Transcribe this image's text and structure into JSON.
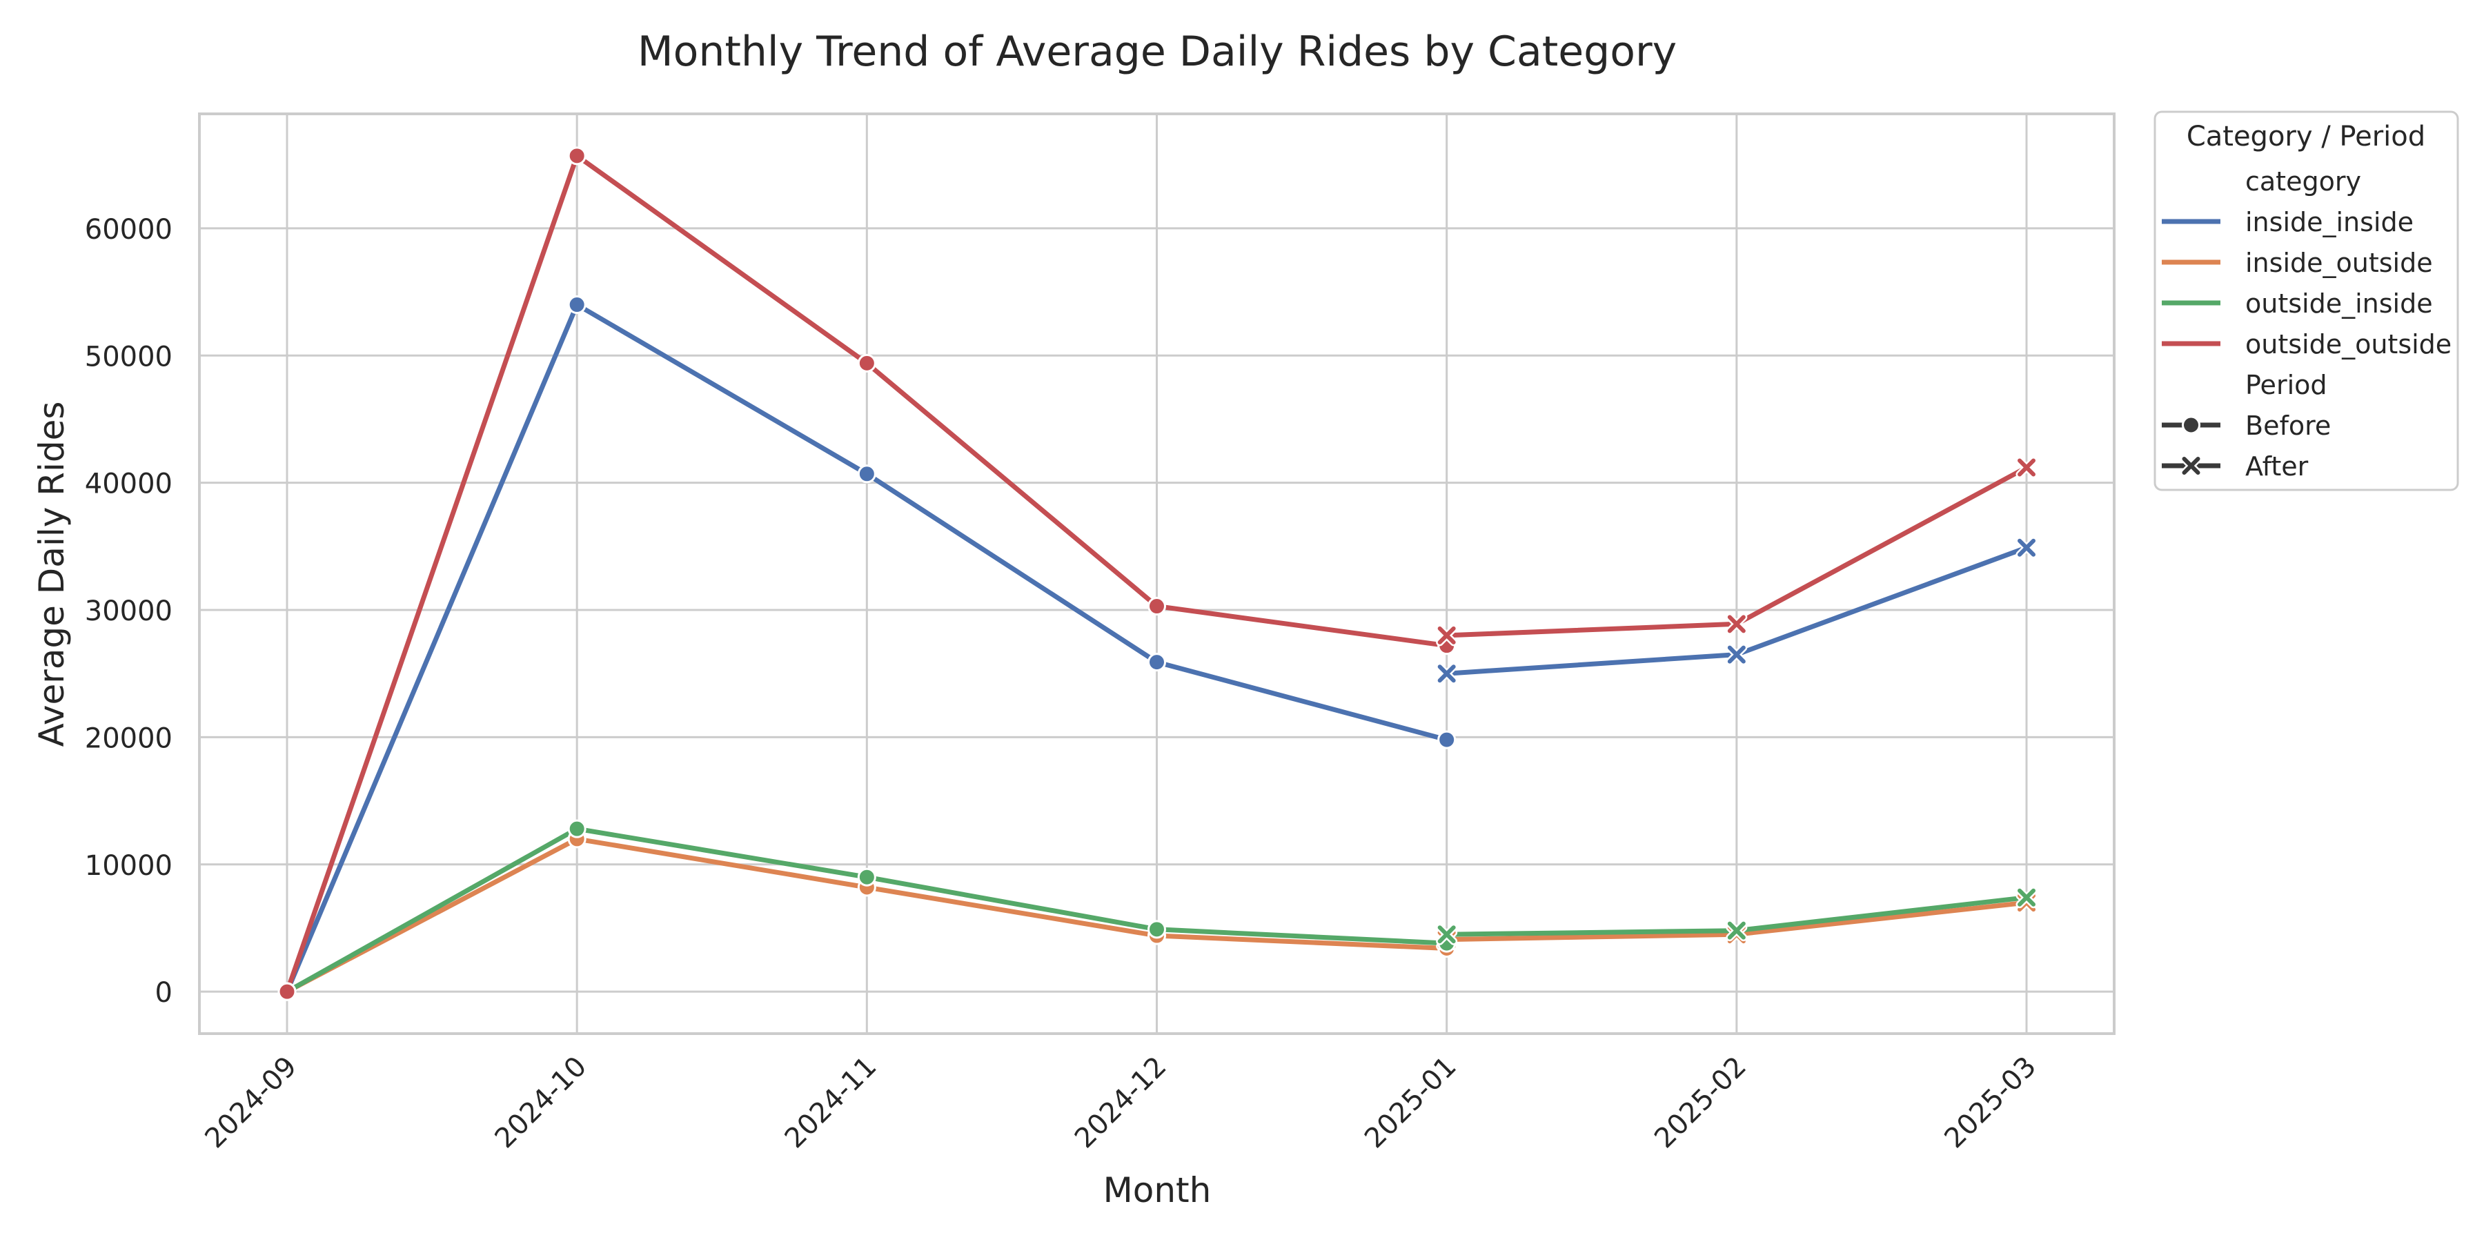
{
  "chart_data": {
    "type": "line",
    "title": "Monthly Trend of Average Daily Rides by Category",
    "xlabel": "Month",
    "ylabel": "Average Daily Rides",
    "categories": [
      "2024-09",
      "2024-10",
      "2024-11",
      "2024-12",
      "2025-01",
      "2025-02",
      "2025-03"
    ],
    "ylim": [
      -3300,
      69000
    ],
    "yticks": [
      0,
      10000,
      20000,
      30000,
      40000,
      50000,
      60000
    ],
    "ytick_labels": [
      "0",
      "10000",
      "20000",
      "30000",
      "40000",
      "50000",
      "60000"
    ],
    "grid": true,
    "legend": {
      "title": "Category / Period",
      "placement": "outside-top-right",
      "hue_header": "category",
      "style_header": "Period",
      "style_entries": [
        {
          "name": "Before",
          "marker": "circle"
        },
        {
          "name": "After",
          "marker": "x"
        }
      ]
    },
    "series": [
      {
        "name": "inside_inside",
        "color": "#4c72b0",
        "points": [
          {
            "x": "2024-09",
            "y": 0,
            "period": "Before"
          },
          {
            "x": "2024-10",
            "y": 54000,
            "period": "Before"
          },
          {
            "x": "2024-11",
            "y": 40700,
            "period": "Before"
          },
          {
            "x": "2024-12",
            "y": 25900,
            "period": "Before"
          },
          {
            "x": "2025-01",
            "y": 19800,
            "period": "Before"
          },
          {
            "x": "2025-01",
            "y": 25000,
            "period": "After"
          },
          {
            "x": "2025-02",
            "y": 26500,
            "period": "After"
          },
          {
            "x": "2025-03",
            "y": 34900,
            "period": "After"
          }
        ]
      },
      {
        "name": "inside_outside",
        "color": "#dd8452",
        "points": [
          {
            "x": "2024-09",
            "y": 0,
            "period": "Before"
          },
          {
            "x": "2024-10",
            "y": 12000,
            "period": "Before"
          },
          {
            "x": "2024-11",
            "y": 8200,
            "period": "Before"
          },
          {
            "x": "2024-12",
            "y": 4400,
            "period": "Before"
          },
          {
            "x": "2025-01",
            "y": 3400,
            "period": "Before"
          },
          {
            "x": "2025-01",
            "y": 4100,
            "period": "After"
          },
          {
            "x": "2025-02",
            "y": 4500,
            "period": "After"
          },
          {
            "x": "2025-03",
            "y": 7000,
            "period": "After"
          }
        ]
      },
      {
        "name": "outside_inside",
        "color": "#55a868",
        "points": [
          {
            "x": "2024-09",
            "y": 0,
            "period": "Before"
          },
          {
            "x": "2024-10",
            "y": 12800,
            "period": "Before"
          },
          {
            "x": "2024-11",
            "y": 9000,
            "period": "Before"
          },
          {
            "x": "2024-12",
            "y": 4900,
            "period": "Before"
          },
          {
            "x": "2025-01",
            "y": 3800,
            "period": "Before"
          },
          {
            "x": "2025-01",
            "y": 4500,
            "period": "After"
          },
          {
            "x": "2025-02",
            "y": 4800,
            "period": "After"
          },
          {
            "x": "2025-03",
            "y": 7400,
            "period": "After"
          }
        ]
      },
      {
        "name": "outside_outside",
        "color": "#c44e52",
        "points": [
          {
            "x": "2024-09",
            "y": 0,
            "period": "Before"
          },
          {
            "x": "2024-10",
            "y": 65700,
            "period": "Before"
          },
          {
            "x": "2024-11",
            "y": 49400,
            "period": "Before"
          },
          {
            "x": "2024-12",
            "y": 30300,
            "period": "Before"
          },
          {
            "x": "2025-01",
            "y": 27200,
            "period": "Before"
          },
          {
            "x": "2025-01",
            "y": 28000,
            "period": "After"
          },
          {
            "x": "2025-02",
            "y": 28900,
            "period": "After"
          },
          {
            "x": "2025-03",
            "y": 41200,
            "period": "After"
          }
        ]
      }
    ]
  }
}
